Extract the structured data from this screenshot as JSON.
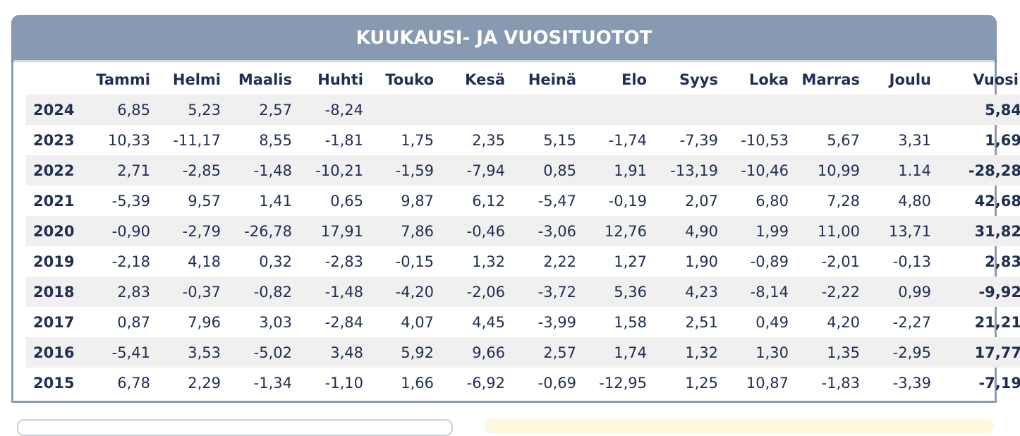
{
  "title": "KUUKAUSI- JA VUOSITUOTOT",
  "columns": [
    "",
    "Tammi",
    "Helmi",
    "Maalis",
    "Huhti",
    "Touko",
    "Kesä",
    "Heinä",
    "Elo",
    "Syys",
    "Loka",
    "Marras",
    "Joulu",
    "Vuosi"
  ],
  "rows": [
    {
      "year": "2024",
      "months": [
        "6,85",
        "5,23",
        "2,57",
        "-8,24",
        "",
        "",
        "",
        "",
        "",
        "",
        "",
        ""
      ],
      "yearly": "5,84"
    },
    {
      "year": "2023",
      "months": [
        "10,33",
        "-11,17",
        "8,55",
        "-1,81",
        "1,75",
        "2,35",
        "5,15",
        "-1,74",
        "-7,39",
        "-10,53",
        "5,67",
        "3,31"
      ],
      "yearly": "1,69"
    },
    {
      "year": "2022",
      "months": [
        "2,71",
        "-2,85",
        "-1,48",
        "-10,21",
        "-1,59",
        "-7,94",
        "0,85",
        "1,91",
        "-13,19",
        "-10,46",
        "10,99",
        "1.14"
      ],
      "yearly": "-28,28"
    },
    {
      "year": "2021",
      "months": [
        "-5,39",
        "9,57",
        "1,41",
        "0,65",
        "9,87",
        "6,12",
        "-5,47",
        "-0,19",
        "2,07",
        "6,80",
        "7,28",
        "4,80"
      ],
      "yearly": "42,68"
    },
    {
      "year": "2020",
      "months": [
        "-0,90",
        "-2,79",
        "-26,78",
        "17,91",
        "7,86",
        "-0,46",
        "-3,06",
        "12,76",
        "4,90",
        "1,99",
        "11,00",
        "13,71"
      ],
      "yearly": "31,82"
    },
    {
      "year": "2019",
      "months": [
        "-2,18",
        "4,18",
        "0,32",
        "-2,83",
        "-0,15",
        "1,32",
        "2,22",
        "1,27",
        "1,90",
        "-0,89",
        "-2,01",
        "-0,13"
      ],
      "yearly": "2,83"
    },
    {
      "year": "2018",
      "months": [
        "2,83",
        "-0,37",
        "-0,82",
        "-1,48",
        "-4,20",
        "-2,06",
        "-3,72",
        "5,36",
        "4,23",
        "-8,14",
        "-2,22",
        "0,99"
      ],
      "yearly": "-9,92"
    },
    {
      "year": "2017",
      "months": [
        "0,87",
        "7,96",
        "3,03",
        "-2,84",
        "4,07",
        "4,45",
        "-3,99",
        "1,58",
        "2,51",
        "0,49",
        "4,20",
        "-2,27"
      ],
      "yearly": "21,21"
    },
    {
      "year": "2016",
      "months": [
        "-5,41",
        "3,53",
        "-5,02",
        "3,48",
        "5,92",
        "9,66",
        "2,57",
        "1,74",
        "1,32",
        "1,30",
        "1,35",
        "-2,95"
      ],
      "yearly": "17,77"
    },
    {
      "year": "2015",
      "months": [
        "6,78",
        "2,29",
        "-1,34",
        "-1,10",
        "1,66",
        "-6,92",
        "-0,69",
        "-12,95",
        "1,25",
        "10,87",
        "-1,83",
        "-3,39"
      ],
      "yearly": "-7,19"
    }
  ],
  "colors": {
    "header_bg": "#8899b2",
    "text": "#1f2e52",
    "stripe": "#f0f0f0",
    "border": "#8c9bb1"
  }
}
